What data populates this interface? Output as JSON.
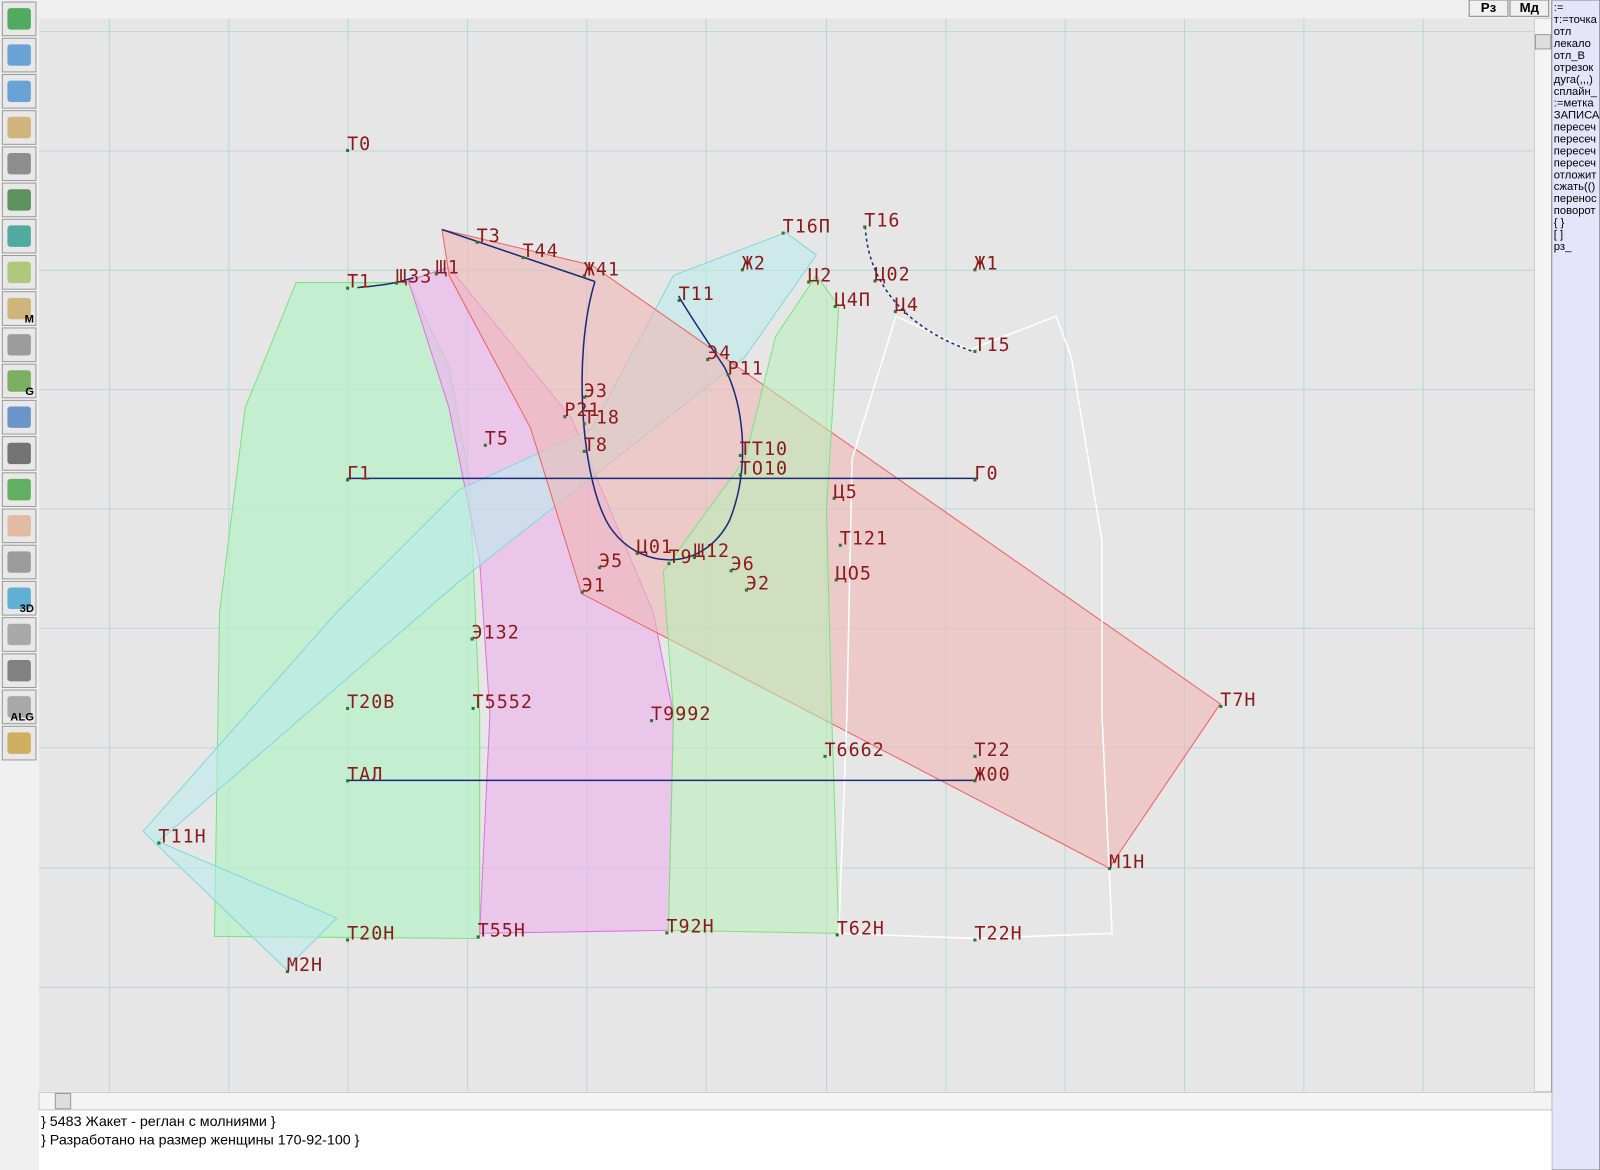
{
  "top_buttons": [
    "Рз",
    "Мд"
  ],
  "toolbar_letters": [
    "M",
    "G",
    "3D",
    "ALG"
  ],
  "command_list": [
    ":=",
    "т:=точка",
    "отл",
    "лекало",
    "отл_В",
    "отрезок",
    "дуга(,,,)",
    "сплайн_",
    ":=метка",
    "ЗАПИСА",
    "пересеч",
    "пересеч",
    "пересеч",
    "пересеч",
    "отложит",
    "сжать(()",
    "перенос",
    "поворот",
    "{ }",
    "[ ]",
    "рз_"
  ],
  "status_lines": [
    "} 5483 Жакет - реглан с молниями  }",
    "} Разработано на размер женщины 170-92-100 }"
  ],
  "point_labels": [
    "Т0",
    "Т3",
    "Т44",
    "Ж41",
    "Т1",
    "Щ33",
    "Щ1",
    "Т16П",
    "Т16",
    "Ж2",
    "Ж1",
    "Ц2",
    "Ц02",
    "Ц4П",
    "Ц4",
    "Т11",
    "Т15",
    "Э4",
    "Р11",
    "Э3",
    "Р21",
    "Т18",
    "Т5",
    "Т8",
    "ТТ10",
    "ТО10",
    "Г1",
    "Г0",
    "Ц5",
    "Т121",
    "Ц01",
    "Т9",
    "Щ12",
    "Э5",
    "Э6",
    "Э1",
    "Э2",
    "ЦО5",
    "Э132",
    "Т20В",
    "Т5552",
    "Т9992",
    "Т7Н",
    "Т22",
    "Т6662",
    "ТАЛ",
    "Ж00",
    "Т11Н",
    "М1Н",
    "Т20Н",
    "Т55Н",
    "Т92Н",
    "Т62Н",
    "Т22Н",
    "М2Н"
  ]
}
